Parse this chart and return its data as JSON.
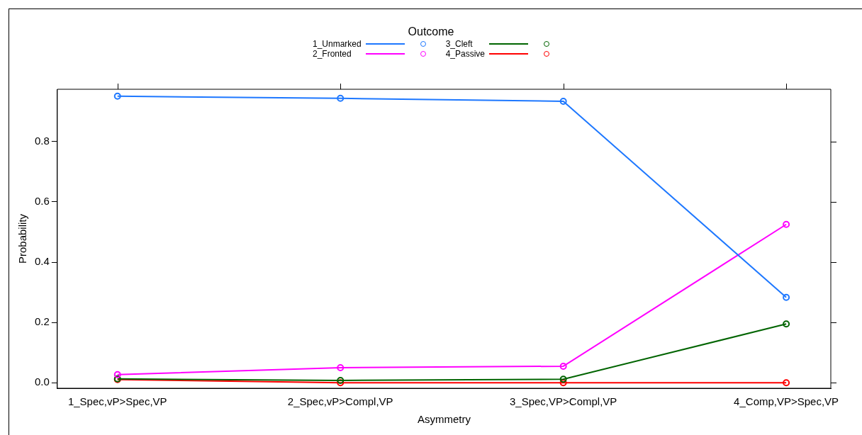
{
  "chart_data": {
    "type": "line",
    "xlabel": "Asymmetry",
    "ylabel": "Probability",
    "legend_title": "Outcome",
    "categories": [
      "1_Spec,vP>Spec,VP",
      "2_Spec,vP>Compl,VP",
      "3_Spec,VP>Compl,VP",
      "4_Comp,VP>Spec,VP"
    ],
    "series": [
      {
        "name": "1_Unmarked",
        "color": "#1e78ff",
        "values": [
          0.95,
          0.943,
          0.933,
          0.283
        ]
      },
      {
        "name": "2_Fronted",
        "color": "#ff00ff",
        "values": [
          0.027,
          0.05,
          0.055,
          0.525
        ]
      },
      {
        "name": "3_Cleft",
        "color": "#006400",
        "values": [
          0.013,
          0.008,
          0.012,
          0.195
        ]
      },
      {
        "name": "4_Passive",
        "color": "#ff0000",
        "values": [
          0.011,
          0.0,
          0.0,
          0.0
        ]
      }
    ],
    "ylim": [
      -0.018,
      0.973
    ],
    "yticks": [
      {
        "value": 0,
        "label": "0.0"
      },
      {
        "value": 0.2,
        "label": "0.2"
      },
      {
        "value": 0.4,
        "label": "0.4"
      },
      {
        "value": 0.6,
        "label": "0.6"
      },
      {
        "value": 0.8,
        "label": "0.8"
      }
    ],
    "grid": false,
    "legend": "top",
    "marker": "circle",
    "line_style": "solid"
  }
}
